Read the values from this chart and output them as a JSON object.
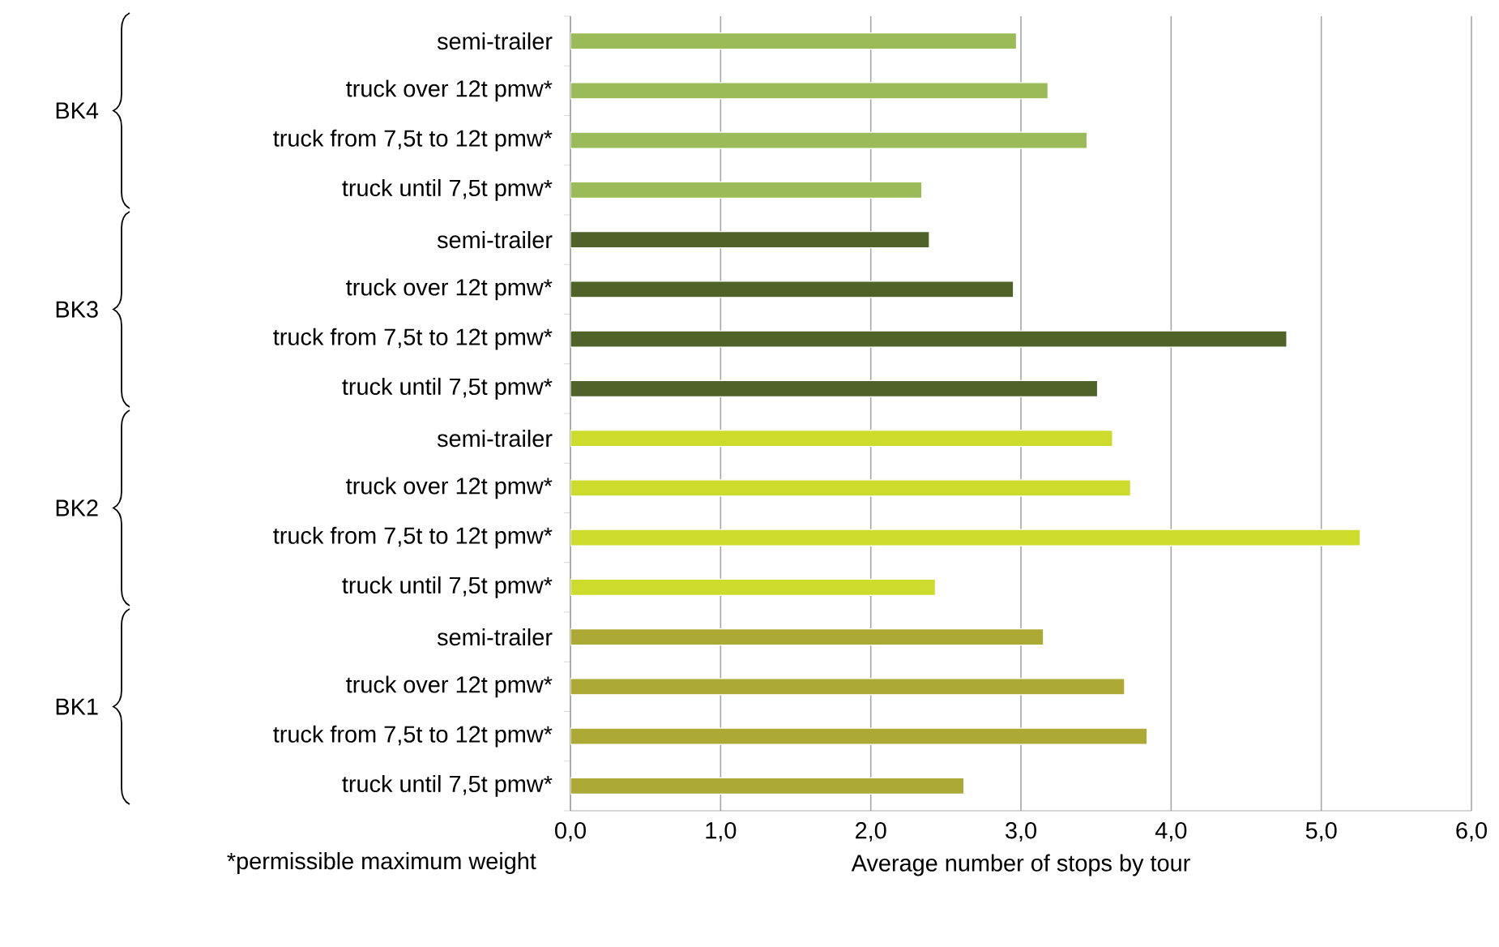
{
  "chart_data": {
    "type": "bar",
    "orientation": "horizontal",
    "xlabel": "Average number of stops by tour",
    "categories": [
      "semi-trailer",
      "truck over 12t pmw*",
      "truck from 7,5t to 12t pmw*",
      "truck until 7,5t pmw*",
      "semi-trailer",
      "truck over 12t pmw*",
      "truck from 7,5t to 12t pmw*",
      "truck until 7,5t pmw*",
      "semi-trailer",
      "truck over 12t pmw*",
      "truck from 7,5t to 12t pmw*",
      "truck until 7,5t pmw*",
      "semi-trailer",
      "truck over 12t pmw*",
      "truck from 7,5t to 12t pmw*",
      "truck until 7,5t pmw*"
    ],
    "values": [
      2.97,
      3.18,
      3.44,
      2.34,
      2.39,
      2.95,
      4.77,
      3.51,
      3.61,
      3.73,
      5.26,
      2.43,
      3.15,
      3.69,
      3.84,
      2.62
    ],
    "colors": [
      "#9bbb59",
      "#9bbb59",
      "#9bbb59",
      "#9bbb59",
      "#4f6228",
      "#4f6228",
      "#4f6228",
      "#4f6228",
      "#cddb2c",
      "#cddb2c",
      "#cddb2c",
      "#cddb2c",
      "#acaa35",
      "#acaa35",
      "#acaa35",
      "#acaa35"
    ],
    "xlim": [
      0,
      6
    ],
    "xticks": [
      {
        "value": 0,
        "label": "0,0"
      },
      {
        "value": 1,
        "label": "1,0"
      },
      {
        "value": 2,
        "label": "2,0"
      },
      {
        "value": 3,
        "label": "3,0"
      },
      {
        "value": 4,
        "label": "4,0"
      },
      {
        "value": 5,
        "label": "5,0"
      },
      {
        "value": 6,
        "label": "6,0"
      }
    ],
    "grid": "x",
    "annotations": [
      "BK4",
      "BK3",
      "BK2",
      "BK1",
      "*permissible maximum weight"
    ]
  }
}
